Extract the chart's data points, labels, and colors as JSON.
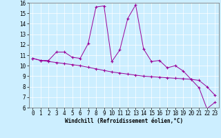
{
  "xlabel": "Windchill (Refroidissement éolien,°C)",
  "bg_color": "#cceeff",
  "line_color": "#990099",
  "grid_color": "#ffffff",
  "xlim": [
    -0.5,
    23.5
  ],
  "ylim": [
    6,
    16
  ],
  "yticks": [
    6,
    7,
    8,
    9,
    10,
    11,
    12,
    13,
    14,
    15,
    16
  ],
  "xticks": [
    0,
    1,
    2,
    3,
    4,
    5,
    6,
    7,
    8,
    9,
    10,
    11,
    12,
    13,
    14,
    15,
    16,
    17,
    18,
    19,
    20,
    21,
    22,
    23
  ],
  "series1_x": [
    0,
    1,
    2,
    3,
    4,
    5,
    6,
    7,
    8,
    9,
    10,
    11,
    12,
    13,
    14,
    15,
    16,
    17,
    18,
    19,
    20,
    21,
    22,
    23
  ],
  "series1_y": [
    10.7,
    10.5,
    10.5,
    11.3,
    11.3,
    10.8,
    10.7,
    12.1,
    15.6,
    15.7,
    10.4,
    11.5,
    14.5,
    15.8,
    11.6,
    10.4,
    10.5,
    9.8,
    10.0,
    9.5,
    8.7,
    7.9,
    5.9,
    6.5
  ],
  "series2_x": [
    0,
    1,
    2,
    3,
    4,
    5,
    6,
    7,
    8,
    9,
    10,
    11,
    12,
    13,
    14,
    15,
    16,
    17,
    18,
    19,
    20,
    21,
    22,
    23
  ],
  "series2_y": [
    10.7,
    10.5,
    10.4,
    10.3,
    10.2,
    10.1,
    10.0,
    9.85,
    9.7,
    9.55,
    9.4,
    9.3,
    9.2,
    9.1,
    9.0,
    8.95,
    8.9,
    8.85,
    8.8,
    8.75,
    8.7,
    8.6,
    8.0,
    7.2
  ],
  "tick_fontsize": 5.5,
  "xlabel_fontsize": 5.5,
  "linewidth": 0.7,
  "markersize": 3.0
}
